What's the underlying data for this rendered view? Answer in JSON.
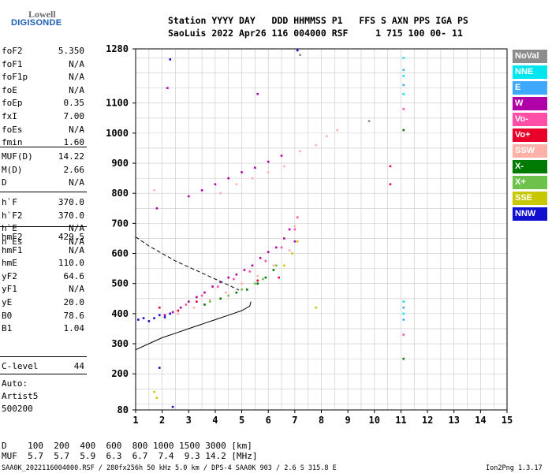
{
  "logo": {
    "line1": "Lowell",
    "line2": "DIGISONDE"
  },
  "header": {
    "line1": "Station YYYY DAY   DDD HHMMSS P1   FFS S AXN PPS IGA PS",
    "line2": "SaoLuis 2022 Apr26 116 004000 RSF     1 715 100 00- 11"
  },
  "params_group1": [
    {
      "name": "foF2",
      "value": "5.350"
    },
    {
      "name": "foF1",
      "value": "N/A"
    },
    {
      "name": "foF1p",
      "value": "N/A"
    },
    {
      "name": "foE",
      "value": "N/A"
    },
    {
      "name": "foEp",
      "value": "0.35"
    },
    {
      "name": "fxI",
      "value": "7.00"
    },
    {
      "name": "foEs",
      "value": "N/A"
    },
    {
      "name": "fmin",
      "value": "1.60"
    }
  ],
  "params_group2": [
    {
      "name": "MUF(D)",
      "value": "14.22"
    },
    {
      "name": "M(D)",
      "value": "2.66"
    },
    {
      "name": "D",
      "value": "N/A"
    }
  ],
  "params_group3": [
    {
      "name": "h`F",
      "value": "370.0"
    },
    {
      "name": "h`F2",
      "value": "370.0"
    },
    {
      "name": "h`E",
      "value": "N/A"
    },
    {
      "name": "h`Es",
      "value": "N/A"
    }
  ],
  "params_group4": [
    {
      "name": "hmF2",
      "value": "429.5"
    },
    {
      "name": "hmF1",
      "value": "N/A"
    },
    {
      "name": "hmE",
      "value": "110.0"
    },
    {
      "name": "yF2",
      "value": "64.6"
    },
    {
      "name": "yF1",
      "value": "N/A"
    },
    {
      "name": "yE",
      "value": "20.0"
    },
    {
      "name": "B0",
      "value": "78.6"
    },
    {
      "name": "B1",
      "value": "1.04"
    }
  ],
  "params_group5": [
    {
      "name": "C-level",
      "value": "44"
    }
  ],
  "autoscaling": {
    "line1": "Auto:",
    "line2": "Artist5",
    "line3": "500200"
  },
  "legend": [
    {
      "label": "NoVal",
      "color": "#8c8c8c"
    },
    {
      "label": "NNE",
      "color": "#00e5ee"
    },
    {
      "label": "E",
      "color": "#3ea8ff"
    },
    {
      "label": "W",
      "color": "#b000a8"
    },
    {
      "label": "Vo-",
      "color": "#ff4fa6"
    },
    {
      "label": "Vo+",
      "color": "#e8002a"
    },
    {
      "label": "SSW",
      "color": "#ffb0a8"
    },
    {
      "label": "X-",
      "color": "#007a00"
    },
    {
      "label": "X+",
      "color": "#6cc24a"
    },
    {
      "label": "SSE",
      "color": "#c8c800"
    },
    {
      "label": "NNW",
      "color": "#1010d0"
    }
  ],
  "muf_table": {
    "row1": "D    100  200  400  600  800 1000 1500 3000 [km]",
    "row2": "MUF  5.7  5.7  5.9  6.3  6.7  7.4  9.3 14.2 [MHz]"
  },
  "footer": {
    "left": "SAA0K_2022116004000.RSF / 280fx256h 50 kHz 5.0 km / DPS-4 SAA0K 903 / 2.6 S 315.8 E",
    "right": "Ion2Png 1.3.17"
  },
  "chart_data": {
    "type": "scatter",
    "title": "",
    "xlabel": "",
    "ylabel": "",
    "xlim": [
      1,
      15
    ],
    "ylim": [
      80,
      1280
    ],
    "x_ticks": [
      1,
      2,
      3,
      4,
      5,
      6,
      7,
      8,
      9,
      10,
      11,
      12,
      13,
      14,
      15
    ],
    "y_ticks": [
      80,
      200,
      300,
      400,
      500,
      600,
      700,
      800,
      900,
      1000,
      1100,
      1280
    ],
    "grid": true,
    "series": [
      {
        "name": "W",
        "color": "#b000a8",
        "points": [
          [
            2.1,
            395
          ],
          [
            2.4,
            405
          ],
          [
            2.7,
            420
          ],
          [
            3.0,
            440
          ],
          [
            3.3,
            455
          ],
          [
            3.6,
            470
          ],
          [
            3.9,
            490
          ],
          [
            4.2,
            505
          ],
          [
            4.5,
            520
          ],
          [
            4.8,
            530
          ],
          [
            5.1,
            545
          ],
          [
            5.4,
            560
          ],
          [
            5.7,
            585
          ],
          [
            6.0,
            605
          ],
          [
            6.3,
            620
          ],
          [
            6.6,
            650
          ],
          [
            6.8,
            680
          ],
          [
            7.0,
            640
          ],
          [
            3.0,
            790
          ],
          [
            3.5,
            810
          ],
          [
            4.0,
            830
          ],
          [
            4.5,
            850
          ],
          [
            5.0,
            870
          ],
          [
            5.5,
            885
          ],
          [
            6.0,
            905
          ],
          [
            6.5,
            925
          ],
          [
            1.8,
            750
          ],
          [
            2.2,
            1150
          ],
          [
            5.6,
            1130
          ]
        ]
      },
      {
        "name": "Vo-",
        "color": "#ff4fa6",
        "points": [
          [
            2.3,
            400
          ],
          [
            2.9,
            430
          ],
          [
            3.5,
            460
          ],
          [
            4.1,
            490
          ],
          [
            4.7,
            515
          ],
          [
            5.3,
            540
          ],
          [
            5.9,
            575
          ],
          [
            6.5,
            620
          ],
          [
            7.0,
            680
          ],
          [
            7.1,
            720
          ],
          [
            11.1,
            1080
          ],
          [
            11.1,
            330
          ]
        ]
      },
      {
        "name": "SSW",
        "color": "#ffb0a8",
        "points": [
          [
            2.6,
            400
          ],
          [
            3.2,
            420
          ],
          [
            3.8,
            445
          ],
          [
            4.4,
            470
          ],
          [
            5.0,
            500
          ],
          [
            5.6,
            525
          ],
          [
            6.2,
            560
          ],
          [
            6.8,
            610
          ],
          [
            7.0,
            690
          ],
          [
            4.2,
            800
          ],
          [
            4.8,
            830
          ],
          [
            5.4,
            850
          ],
          [
            6.0,
            870
          ],
          [
            6.6,
            890
          ],
          [
            7.2,
            940
          ],
          [
            7.8,
            960
          ],
          [
            8.2,
            990
          ],
          [
            8.6,
            1010
          ],
          [
            1.7,
            810
          ]
        ]
      },
      {
        "name": "X-",
        "color": "#007a00",
        "points": [
          [
            3.6,
            430
          ],
          [
            4.2,
            450
          ],
          [
            4.8,
            470
          ],
          [
            5.2,
            480
          ],
          [
            5.6,
            500
          ],
          [
            5.9,
            520
          ],
          [
            6.2,
            545
          ],
          [
            11.1,
            1010
          ],
          [
            11.1,
            250
          ]
        ]
      },
      {
        "name": "X+",
        "color": "#6cc24a",
        "points": [
          [
            3.8,
            440
          ],
          [
            4.5,
            460
          ],
          [
            5.0,
            480
          ],
          [
            5.5,
            500
          ],
          [
            5.8,
            515
          ],
          [
            6.3,
            560
          ]
        ]
      },
      {
        "name": "SSE",
        "color": "#c8c800",
        "points": [
          [
            6.6,
            560
          ],
          [
            6.9,
            600
          ],
          [
            7.1,
            640
          ],
          [
            7.8,
            420
          ],
          [
            1.7,
            140
          ],
          [
            1.8,
            120
          ]
        ]
      },
      {
        "name": "NNW",
        "color": "#1010d0",
        "points": [
          [
            1.1,
            380
          ],
          [
            1.3,
            385
          ],
          [
            1.5,
            375
          ],
          [
            1.7,
            385
          ],
          [
            1.9,
            395
          ],
          [
            2.1,
            388
          ],
          [
            2.3,
            400
          ],
          [
            1.9,
            220
          ],
          [
            2.3,
            1245
          ],
          [
            7.1,
            1275
          ],
          [
            2.4,
            90
          ]
        ]
      },
      {
        "name": "NNE",
        "color": "#00e5ee",
        "points": [
          [
            11.1,
            1250
          ],
          [
            11.1,
            1190
          ],
          [
            11.1,
            1130
          ],
          [
            11.1,
            440
          ],
          [
            11.1,
            400
          ]
        ]
      },
      {
        "name": "E",
        "color": "#3ea8ff",
        "points": [
          [
            11.1,
            1210
          ],
          [
            11.1,
            1160
          ],
          [
            11.1,
            420
          ],
          [
            11.1,
            380
          ]
        ]
      },
      {
        "name": "Vo+",
        "color": "#e8002a",
        "points": [
          [
            1.9,
            420
          ],
          [
            2.6,
            410
          ],
          [
            3.3,
            440
          ],
          [
            5.6,
            510
          ],
          [
            6.4,
            520
          ],
          [
            10.6,
            890
          ],
          [
            10.6,
            830
          ]
        ]
      },
      {
        "name": "NoVal",
        "color": "#8c8c8c",
        "points": [
          [
            7.2,
            1260
          ],
          [
            9.8,
            1040
          ]
        ]
      }
    ],
    "profile_curve": [
      [
        1.0,
        280
      ],
      [
        1.5,
        300
      ],
      [
        2.0,
        320
      ],
      [
        2.5,
        335
      ],
      [
        3.0,
        350
      ],
      [
        3.5,
        365
      ],
      [
        4.0,
        380
      ],
      [
        4.5,
        395
      ],
      [
        5.0,
        410
      ],
      [
        5.3,
        425
      ],
      [
        5.35,
        440
      ]
    ],
    "topside_curve": [
      [
        1.0,
        655
      ],
      [
        1.5,
        625
      ],
      [
        2.0,
        600
      ],
      [
        2.5,
        575
      ],
      [
        3.0,
        555
      ],
      [
        3.5,
        535
      ],
      [
        4.0,
        515
      ],
      [
        4.5,
        495
      ],
      [
        4.9,
        478
      ]
    ]
  }
}
